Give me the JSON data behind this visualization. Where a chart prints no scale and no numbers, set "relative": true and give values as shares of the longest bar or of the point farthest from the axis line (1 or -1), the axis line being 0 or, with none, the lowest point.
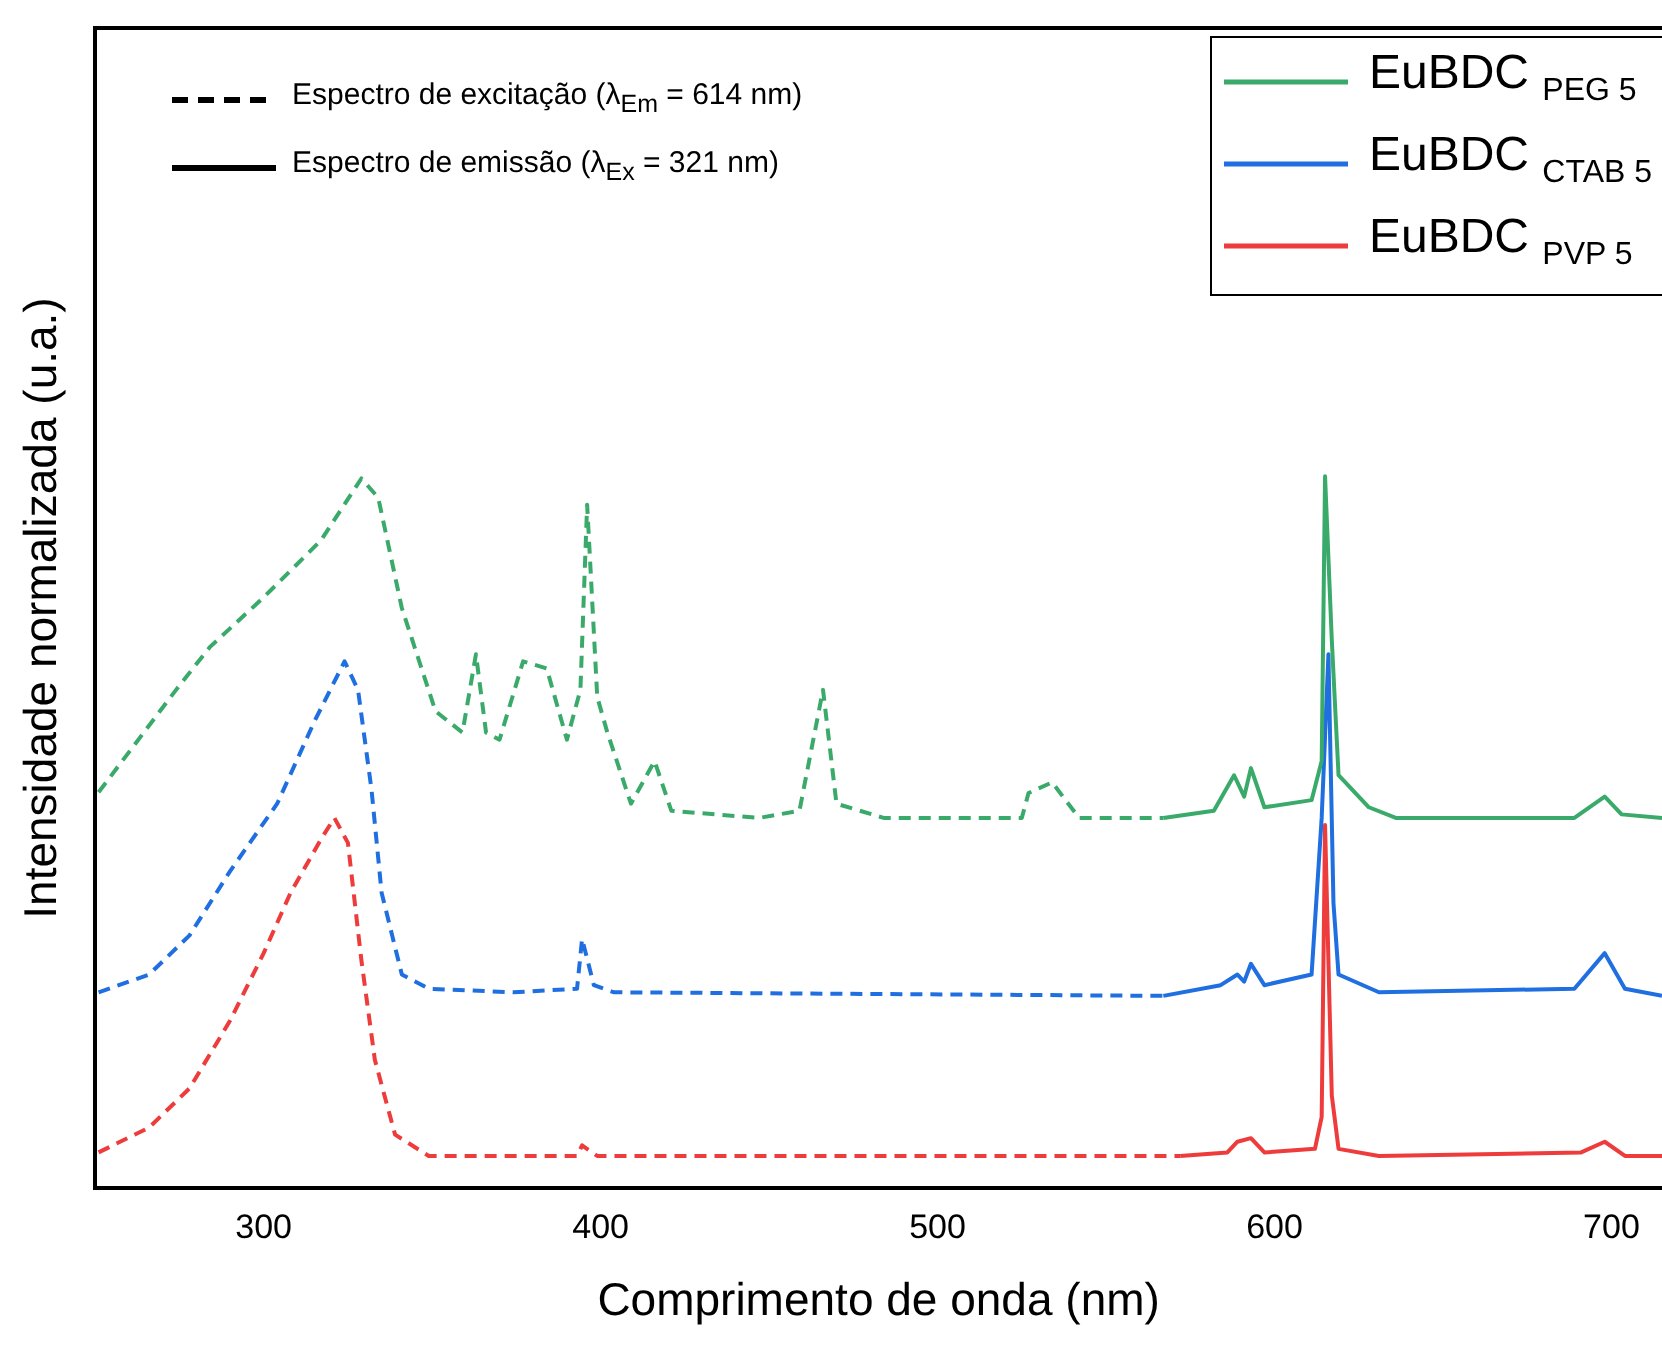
{
  "chart_data": {
    "type": "line",
    "xlabel": "Comprimento de onda (nm)",
    "ylabel": "Intensidade normalizada (u.a.)",
    "relative": true,
    "xlim": [
      250,
      715
    ],
    "xticks": [
      300,
      400,
      500,
      600,
      700
    ],
    "grid": false,
    "legend": "top right",
    "tick_labels": "x",
    "marker": "none",
    "annotations": [
      "Espectro de excitação (λ$_{Em}$ = 614 nm)",
      "Espectro de emissão (λ$_{Ex}$ = 321 nm)"
    ],
    "series": [
      {
        "color": "#3aaa6a",
        "line_style": "dashed",
        "x": [
          251,
          274,
          284,
          300,
          317,
          329,
          334,
          341,
          351,
          359,
          363,
          366,
          370,
          377,
          384,
          390,
          394,
          396,
          399,
          402,
          409,
          416,
          421,
          447,
          459,
          466,
          470,
          484,
          525,
          527,
          534,
          542,
          567
        ],
        "values": [
          0.556,
          0.7,
          0.76,
          0.83,
          0.91,
          0.997,
          0.97,
          0.815,
          0.67,
          0.64,
          0.75,
          0.64,
          0.63,
          0.74,
          0.73,
          0.63,
          0.7,
          0.96,
          0.69,
          0.64,
          0.54,
          0.6,
          0.53,
          0.52,
          0.53,
          0.7,
          0.54,
          0.52,
          0.52,
          0.555,
          0.57,
          0.52,
          0.52
        ]
      },
      {
        "name": "EuBDC $_{PEG 5}$",
        "color": "#3aaa6a",
        "line_style": "solid",
        "x": [
          567,
          582,
          588,
          591,
          593,
          597,
          611,
          614,
          615,
          617,
          619,
          628,
          636,
          689,
          698,
          703,
          715
        ],
        "values": [
          0.52,
          0.53,
          0.58,
          0.55,
          0.59,
          0.535,
          0.545,
          0.6,
          1.0,
          0.77,
          0.58,
          0.535,
          0.52,
          0.52,
          0.55,
          0.525,
          0.52
        ]
      },
      {
        "color": "#1f6fe0",
        "line_style": "dashed",
        "x": [
          251,
          266,
          278,
          290,
          304,
          315,
          324,
          328,
          332,
          335,
          341,
          349,
          374,
          393,
          394.5,
          398,
          404,
          567
        ],
        "values": [
          0.275,
          0.3,
          0.355,
          0.445,
          0.54,
          0.655,
          0.74,
          0.7,
          0.56,
          0.415,
          0.3,
          0.28,
          0.275,
          0.28,
          0.35,
          0.285,
          0.275,
          0.27
        ]
      },
      {
        "name": "EuBDC $_{CTAB 5}$",
        "color": "#1f6fe0",
        "line_style": "solid",
        "x": [
          567,
          584,
          589,
          591,
          593,
          597,
          611,
          614,
          616,
          617.5,
          619,
          631,
          689,
          698,
          704,
          715
        ],
        "values": [
          0.27,
          0.285,
          0.3,
          0.29,
          0.315,
          0.285,
          0.3,
          0.52,
          0.75,
          0.4,
          0.3,
          0.275,
          0.28,
          0.33,
          0.28,
          0.27
        ]
      },
      {
        "color": "#ee3b3b",
        "line_style": "dashed",
        "x": [
          251,
          266,
          278,
          290,
          300,
          308,
          317,
          321,
          325,
          329,
          333,
          339,
          349,
          393,
          394.5,
          399,
          572
        ],
        "values": [
          0.05,
          0.085,
          0.14,
          0.235,
          0.33,
          0.415,
          0.49,
          0.52,
          0.485,
          0.32,
          0.18,
          0.075,
          0.045,
          0.045,
          0.06,
          0.045,
          0.045
        ]
      },
      {
        "name": "EuBDC $_{PVP 5}$",
        "color": "#ee3b3b",
        "line_style": "solid",
        "x": [
          572,
          586,
          589,
          593,
          597,
          612,
          614,
          615,
          617,
          619,
          631,
          691,
          698,
          704,
          715
        ],
        "values": [
          0.045,
          0.05,
          0.065,
          0.07,
          0.05,
          0.055,
          0.1,
          0.51,
          0.13,
          0.055,
          0.045,
          0.05,
          0.065,
          0.045,
          0.045
        ]
      }
    ]
  }
}
